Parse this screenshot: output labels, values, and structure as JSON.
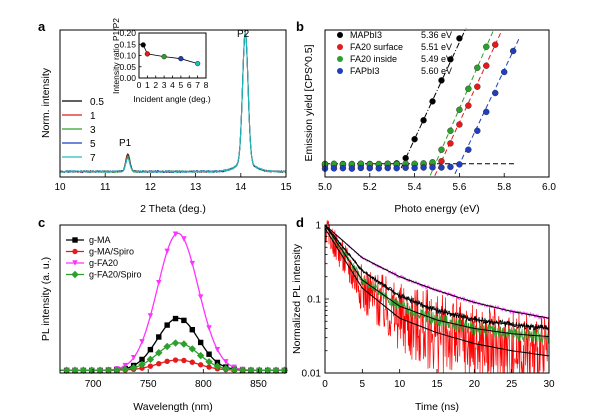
{
  "chart_data": [
    {
      "panel": "a",
      "type": "line",
      "xlabel": "2 Theta (deg.)",
      "ylabel": "Norm. intensity",
      "xlim": [
        10,
        15
      ],
      "xticks": [
        "10",
        "11",
        "12",
        "13",
        "14",
        "15"
      ],
      "legend_position": "left",
      "annotations": [
        "P1",
        "P2"
      ],
      "series": [
        {
          "name": "0.5",
          "color": "#000000"
        },
        {
          "name": "1",
          "color": "#e41a1c"
        },
        {
          "name": "3",
          "color": "#2ca02c"
        },
        {
          "name": "5",
          "color": "#1f3fbf"
        },
        {
          "name": "7",
          "color": "#1fbfbf"
        }
      ],
      "peaks": {
        "P1": {
          "x": 11.5
        },
        "P2": {
          "x": 14.1
        }
      },
      "inset": {
        "type": "scatter",
        "xlabel": "Incident angle (deg.)",
        "ylabel": "Intensity ratio P1/P2",
        "xlim": [
          0,
          8
        ],
        "ylim": [
          0,
          0.2
        ],
        "xticks": [
          "0",
          "1",
          "2",
          "3",
          "4",
          "5",
          "6",
          "7",
          "8"
        ],
        "yticks": [
          "0.00",
          "0.05",
          "0.10",
          "0.15",
          "0.20"
        ],
        "points": [
          {
            "x": 0.5,
            "y": 0.147,
            "color": "#000000"
          },
          {
            "x": 1,
            "y": 0.107,
            "color": "#e41a1c"
          },
          {
            "x": 3,
            "y": 0.095,
            "color": "#2ca02c"
          },
          {
            "x": 5,
            "y": 0.086,
            "color": "#1f3fbf"
          },
          {
            "x": 7,
            "y": 0.064,
            "color": "#1fbfbf"
          }
        ]
      }
    },
    {
      "panel": "b",
      "type": "scatter",
      "xlabel": "Photo energy (eV)",
      "ylabel": "Emission yield [CPS^0.5]",
      "xlim": [
        5.0,
        6.0
      ],
      "xticks": [
        "5.0",
        "5.2",
        "5.4",
        "5.6",
        "5.8",
        "6.0"
      ],
      "legend_position": "top-left",
      "series": [
        {
          "name": "MAPbI3",
          "label_value": "5.36 eV",
          "onset": 5.36,
          "color": "#000000",
          "x": [
            5.0,
            5.04,
            5.08,
            5.12,
            5.16,
            5.2,
            5.24,
            5.28,
            5.32,
            5.36,
            5.4,
            5.44,
            5.48,
            5.52,
            5.56,
            5.6
          ],
          "y": [
            0.62,
            0.6,
            0.62,
            0.61,
            0.63,
            0.62,
            0.6,
            0.63,
            0.65,
            0.9,
            1.8,
            2.7,
            3.6,
            4.6,
            5.6,
            6.6
          ]
        },
        {
          "name": "FA20 surface",
          "label_value": "5.51 eV",
          "onset": 5.51,
          "color": "#e41a1c",
          "x": [
            5.0,
            5.04,
            5.08,
            5.12,
            5.16,
            5.2,
            5.24,
            5.28,
            5.32,
            5.36,
            5.4,
            5.44,
            5.48,
            5.52,
            5.56,
            5.6,
            5.64,
            5.68,
            5.72,
            5.76
          ],
          "y": [
            0.55,
            0.56,
            0.58,
            0.55,
            0.57,
            0.56,
            0.58,
            0.57,
            0.58,
            0.58,
            0.6,
            0.6,
            0.62,
            0.75,
            1.6,
            2.5,
            3.4,
            4.3,
            5.3,
            6.3
          ]
        },
        {
          "name": "FA20 inside",
          "label_value": "5.49 eV",
          "onset": 5.49,
          "color": "#2ca02c",
          "x": [
            5.0,
            5.04,
            5.08,
            5.12,
            5.16,
            5.2,
            5.24,
            5.28,
            5.32,
            5.36,
            5.4,
            5.44,
            5.48,
            5.52,
            5.56,
            5.6,
            5.64,
            5.68,
            5.72
          ],
          "y": [
            0.62,
            0.63,
            0.61,
            0.62,
            0.63,
            0.61,
            0.62,
            0.63,
            0.62,
            0.64,
            0.63,
            0.65,
            0.7,
            1.3,
            2.2,
            3.2,
            4.2,
            5.2,
            6.2
          ]
        },
        {
          "name": "FAPbI3",
          "label_value": "5.60 eV",
          "onset": 5.6,
          "color": "#1f3fbf",
          "x": [
            5.0,
            5.04,
            5.08,
            5.12,
            5.16,
            5.2,
            5.24,
            5.28,
            5.32,
            5.36,
            5.4,
            5.44,
            5.48,
            5.52,
            5.56,
            5.6,
            5.64,
            5.68,
            5.72,
            5.76,
            5.8,
            5.84
          ],
          "y": [
            0.4,
            0.41,
            0.42,
            0.4,
            0.43,
            0.42,
            0.41,
            0.43,
            0.42,
            0.44,
            0.43,
            0.45,
            0.46,
            0.45,
            0.48,
            0.6,
            1.3,
            2.2,
            3.1,
            4.0,
            5.0,
            6.0
          ]
        }
      ],
      "baseline_y": 0.63,
      "baseline_xrange": [
        5.0,
        5.85
      ]
    },
    {
      "panel": "c",
      "type": "line",
      "xlabel": "Wavelength (nm)",
      "ylabel": "PL intensity (a. u.)",
      "xlim": [
        670,
        875
      ],
      "xticks": [
        "700",
        "750",
        "800",
        "850"
      ],
      "legend_position": "top-left",
      "peak_x": 777,
      "sigma": 26,
      "series": [
        {
          "name": "g-MA",
          "color": "#000000",
          "marker": "square",
          "peak": 0.38,
          "offset": 0.07
        },
        {
          "name": "g-MA/Spiro",
          "color": "#e41a1c",
          "marker": "circle",
          "peak": 0.075,
          "offset": 0.07
        },
        {
          "name": "g-FA20",
          "color": "#ff33ff",
          "marker": "triangle-down",
          "peak": 1.0,
          "offset": 0.07
        },
        {
          "name": "g-FA20/Spiro",
          "color": "#2ca02c",
          "marker": "diamond",
          "peak": 0.2,
          "offset": 0.07
        }
      ]
    },
    {
      "panel": "d",
      "type": "line",
      "xlabel": "Time (ns)",
      "ylabel": "Normalized PL intensity",
      "xlim": [
        0,
        30
      ],
      "ylim": [
        0.01,
        1
      ],
      "yscale": "log",
      "xticks": [
        "0",
        "5",
        "10",
        "15",
        "20",
        "25",
        "30"
      ],
      "yticks": [
        "0.01",
        "0.1",
        "1"
      ],
      "series": [
        {
          "name": "",
          "color": "#ff33ff",
          "end_value": 0.065,
          "noise": 0.06
        },
        {
          "name": "",
          "color": "#000000",
          "end_value": 0.04,
          "noise": 0.1
        },
        {
          "name": "",
          "color": "#2ca02c",
          "end_value": 0.032,
          "noise": 0.22
        },
        {
          "name": "",
          "color": "#ff0000",
          "end_value": 0.019,
          "noise": 0.9
        }
      ],
      "fits": [
        {
          "color": "#000000",
          "points": [
            [
              0,
              1.0
            ],
            [
              5,
              0.36
            ],
            [
              10,
              0.2
            ],
            [
              15,
              0.13
            ],
            [
              20,
              0.09
            ],
            [
              25,
              0.068
            ],
            [
              30,
              0.055
            ]
          ]
        },
        {
          "color": "#000000",
          "points": [
            [
              0,
              1.0
            ],
            [
              5,
              0.24
            ],
            [
              10,
              0.11
            ],
            [
              15,
              0.07
            ],
            [
              20,
              0.053
            ],
            [
              25,
              0.045
            ],
            [
              30,
              0.04
            ]
          ]
        },
        {
          "color": "#000000",
          "points": [
            [
              0,
              1.0
            ],
            [
              5,
              0.18
            ],
            [
              10,
              0.08
            ],
            [
              15,
              0.052
            ],
            [
              20,
              0.04
            ],
            [
              25,
              0.034
            ],
            [
              30,
              0.031
            ]
          ]
        },
        {
          "color": "#000000",
          "points": [
            [
              0,
              0.9
            ],
            [
              5,
              0.14
            ],
            [
              10,
              0.055
            ],
            [
              15,
              0.035
            ],
            [
              20,
              0.025
            ],
            [
              25,
              0.02
            ],
            [
              30,
              0.017
            ]
          ]
        }
      ]
    }
  ]
}
